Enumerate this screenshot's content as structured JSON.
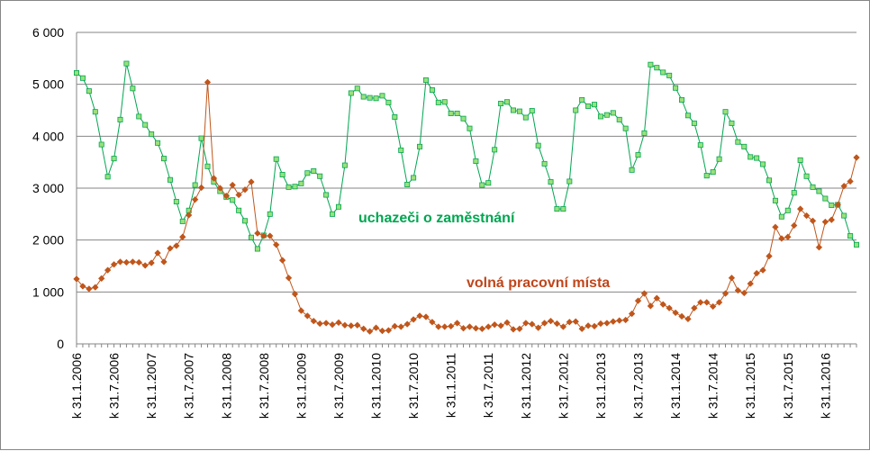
{
  "chart_data": {
    "type": "line",
    "title": "",
    "xlabel": "",
    "ylabel": "",
    "ylim": [
      0,
      6000
    ],
    "yticks": [
      0,
      1000,
      2000,
      3000,
      4000,
      5000,
      6000
    ],
    "ytick_labels": [
      "0",
      "1 000",
      "2 000",
      "3 000",
      "4 000",
      "5 000",
      "6 000"
    ],
    "grid": "horizontal",
    "xtick_labels": [
      "k 31.1.2006",
      "k 31.7.2006",
      "k 31.1.2007",
      "k 31.7.2007",
      "k 31.1.2008",
      "k 31.7.2008",
      "k 31.1.2009",
      "k 31.7.2009",
      "k 31.1.2010",
      "k 31.7.2010",
      "k 31.1.2011",
      "k 31.7.2011",
      "k 31.1.2012",
      "k 31.7.2012",
      "k 31.1.2013",
      "k 31.7.2013",
      "k 31.1.2014",
      "k 31.7.2014",
      "k 31.1.2015",
      "k 31.7.2015",
      "k 31.1.2016"
    ],
    "x_start": "2006-01",
    "series": [
      {
        "name": "uchazeči o zaměstnání",
        "color": "#00a651",
        "marker_fill": "#9be07a",
        "marker": "square",
        "values": [
          5220,
          5120,
          4870,
          4470,
          3840,
          3220,
          3570,
          4320,
          5400,
          4920,
          4380,
          4220,
          4040,
          3870,
          3570,
          3160,
          2740,
          2360,
          2570,
          3060,
          3960,
          3420,
          3120,
          2940,
          2830,
          2770,
          2570,
          2370,
          2050,
          1830,
          2090,
          2500,
          3560,
          3260,
          3020,
          3030,
          3090,
          3290,
          3330,
          3230,
          2870,
          2500,
          2640,
          3440,
          4830,
          4920,
          4760,
          4740,
          4730,
          4780,
          4650,
          4370,
          3730,
          3070,
          3200,
          3800,
          5080,
          4890,
          4650,
          4660,
          4440,
          4440,
          4340,
          4150,
          3520,
          3060,
          3100,
          3740,
          4630,
          4660,
          4500,
          4480,
          4360,
          4490,
          3820,
          3470,
          3120,
          2600,
          2600,
          3130,
          4500,
          4700,
          4580,
          4610,
          4380,
          4410,
          4450,
          4320,
          4150,
          3350,
          3640,
          4060,
          5380,
          5320,
          5230,
          5170,
          4930,
          4700,
          4400,
          4250,
          3830,
          3240,
          3310,
          3560,
          4470,
          4250,
          3890,
          3800,
          3600,
          3580,
          3460,
          3150,
          2760,
          2450,
          2570,
          2910,
          3540,
          3230,
          3020,
          2940,
          2800,
          2670,
          2680,
          2470,
          2080,
          1910
        ]
      },
      {
        "name": "volná pracovní místa",
        "color": "#c0561b",
        "marker_fill": "#c0561b",
        "marker": "diamond",
        "values": [
          1250,
          1110,
          1060,
          1090,
          1260,
          1420,
          1530,
          1580,
          1570,
          1580,
          1570,
          1510,
          1560,
          1750,
          1580,
          1840,
          1890,
          2060,
          2480,
          2780,
          3010,
          5040,
          3190,
          3000,
          2850,
          3060,
          2870,
          2970,
          3120,
          2130,
          2080,
          2080,
          1910,
          1610,
          1270,
          960,
          640,
          540,
          440,
          390,
          400,
          370,
          410,
          360,
          350,
          360,
          290,
          240,
          310,
          250,
          260,
          340,
          330,
          380,
          470,
          540,
          520,
          420,
          330,
          330,
          340,
          400,
          300,
          330,
          300,
          290,
          330,
          370,
          350,
          410,
          280,
          290,
          400,
          380,
          310,
          400,
          440,
          390,
          330,
          420,
          430,
          290,
          350,
          340,
          390,
          400,
          430,
          450,
          460,
          580,
          830,
          970,
          730,
          880,
          760,
          690,
          600,
          530,
          480,
          690,
          800,
          800,
          720,
          800,
          970,
          1270,
          1030,
          980,
          1160,
          1360,
          1420,
          1690,
          2250,
          2030,
          2060,
          2280,
          2600,
          2470,
          2370,
          1860,
          2350,
          2390,
          2680,
          3040,
          3130,
          3590
        ]
      }
    ],
    "annotations": [
      {
        "text": "uchazeči o zaměstnání",
        "color": "#00a651"
      },
      {
        "text": "volná pracovní místa",
        "color": "#c0461b"
      }
    ]
  }
}
